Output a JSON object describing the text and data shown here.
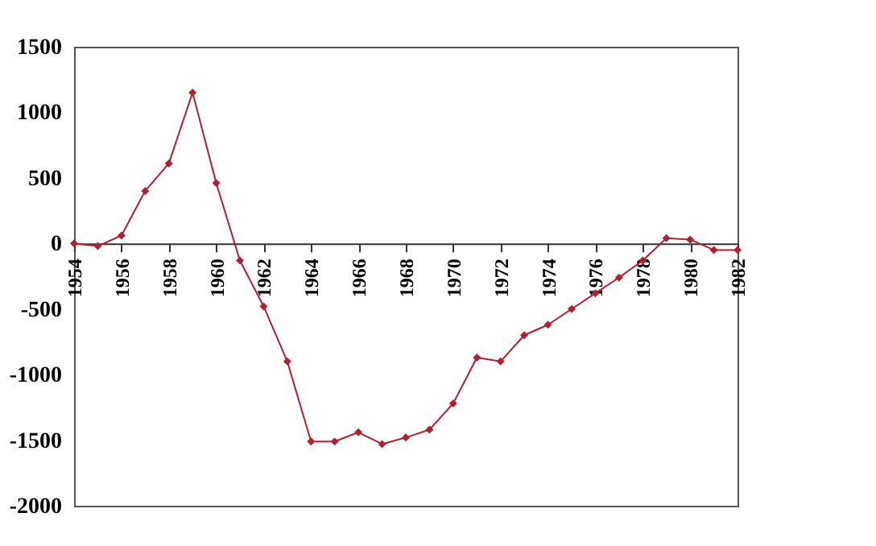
{
  "chart_data": {
    "type": "line",
    "x": [
      1954,
      1955,
      1956,
      1957,
      1958,
      1959,
      1960,
      1961,
      1962,
      1963,
      1964,
      1965,
      1966,
      1967,
      1968,
      1969,
      1970,
      1971,
      1972,
      1973,
      1974,
      1975,
      1976,
      1977,
      1978,
      1979,
      1980,
      1981,
      1982
    ],
    "series": [
      {
        "color": "#b0202e",
        "values": [
          0,
          -20,
          60,
          400,
          610,
          1150,
          460,
          -130,
          -480,
          -900,
          -1510,
          -1510,
          -1440,
          -1530,
          -1480,
          -1420,
          -1220,
          -870,
          -900,
          -700,
          -620,
          -500,
          -380,
          -260,
          -130,
          40,
          30,
          -50,
          -50
        ]
      }
    ],
    "xlim": [
      1954,
      1982
    ],
    "xticks": [
      1954,
      1956,
      1958,
      1960,
      1962,
      1964,
      1966,
      1968,
      1970,
      1972,
      1974,
      1976,
      1978,
      1980,
      1982
    ],
    "ylim": [
      -2000,
      1500
    ],
    "yticks": [
      -2000,
      -1500,
      -1000,
      -500,
      0,
      500,
      1000,
      1500
    ],
    "grid": false,
    "marker": "diamond",
    "line_style": "solid"
  }
}
